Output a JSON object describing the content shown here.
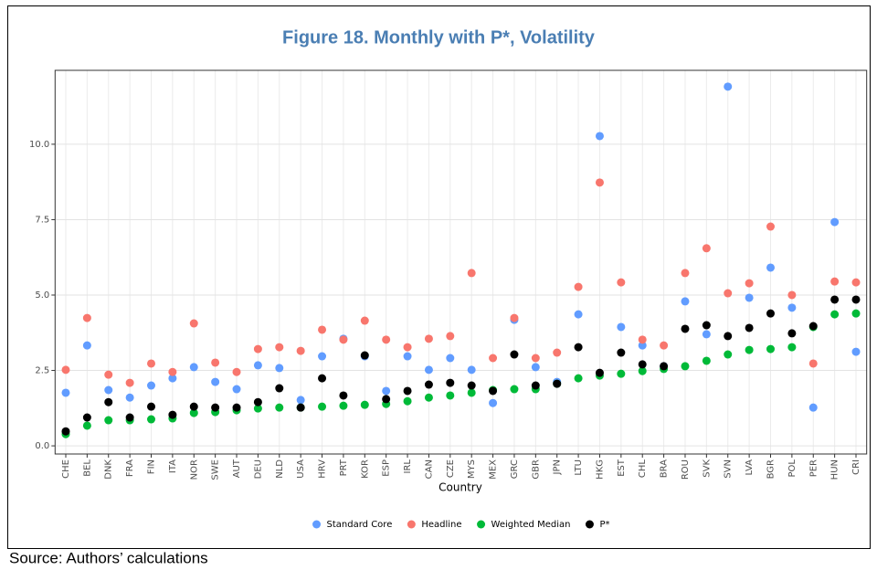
{
  "chart_data": {
    "type": "scatter",
    "title": "Figure 18. Monthly with P*, Volatility",
    "x_label": "Country",
    "categories": [
      "CHE",
      "BEL",
      "DNK",
      "FRA",
      "FIN",
      "ITA",
      "NOR",
      "SWE",
      "AUT",
      "DEU",
      "NLD",
      "USA",
      "HRV",
      "PRT",
      "KOR",
      "ESP",
      "IRL",
      "CAN",
      "CZE",
      "MYS",
      "MEX",
      "GRC",
      "GBR",
      "JPN",
      "LTU",
      "HKG",
      "EST",
      "CHL",
      "BRA",
      "ROU",
      "SVK",
      "SVN",
      "LVA",
      "BGR",
      "POL",
      "PER",
      "HUN",
      "CRI"
    ],
    "series": [
      {
        "name": "Standard Core",
        "color": "#619cff",
        "values": [
          1.76,
          3.33,
          1.85,
          1.6,
          2.0,
          2.24,
          2.61,
          2.12,
          1.88,
          2.67,
          2.58,
          1.52,
          2.97,
          3.55,
          2.97,
          1.82,
          2.97,
          2.52,
          2.91,
          2.52,
          1.42,
          4.18,
          2.61,
          2.12,
          4.36,
          10.27,
          3.94,
          3.33,
          2.64,
          4.79,
          3.7,
          11.91,
          4.91,
          5.91,
          4.58,
          1.27,
          7.42,
          3.12
        ]
      },
      {
        "name": "Headline",
        "color": "#f8766d",
        "values": [
          2.52,
          4.24,
          2.36,
          2.09,
          2.73,
          2.45,
          4.06,
          2.76,
          2.45,
          3.21,
          3.27,
          3.15,
          3.85,
          3.52,
          4.15,
          3.52,
          3.27,
          3.55,
          3.64,
          5.73,
          2.91,
          4.24,
          2.91,
          3.09,
          5.27,
          8.73,
          5.42,
          3.52,
          3.33,
          5.73,
          6.55,
          5.06,
          5.39,
          7.27,
          5.0,
          2.73,
          5.45,
          5.42
        ]
      },
      {
        "name": "Weighted Median",
        "color": "#00ba38",
        "values": [
          0.39,
          0.67,
          0.85,
          0.85,
          0.88,
          0.91,
          1.09,
          1.12,
          1.18,
          1.24,
          1.27,
          1.27,
          1.3,
          1.33,
          1.36,
          1.39,
          1.48,
          1.6,
          1.67,
          1.76,
          1.85,
          1.88,
          1.88,
          2.06,
          2.24,
          2.33,
          2.39,
          2.48,
          2.55,
          2.64,
          2.82,
          3.03,
          3.18,
          3.21,
          3.27,
          3.94,
          4.36,
          4.39
        ]
      },
      {
        "name": "P*",
        "color": "#000000",
        "values": [
          0.48,
          0.94,
          1.45,
          0.94,
          1.3,
          1.03,
          1.3,
          1.27,
          1.27,
          1.45,
          1.91,
          1.27,
          2.24,
          1.67,
          3.0,
          1.55,
          1.82,
          2.03,
          2.09,
          2.0,
          1.82,
          3.03,
          2.0,
          2.06,
          3.27,
          2.42,
          3.09,
          2.7,
          2.64,
          3.88,
          4.0,
          3.64,
          3.91,
          4.39,
          3.73,
          3.97,
          4.85,
          4.85
        ]
      }
    ],
    "ylim": [
      -0.27,
      12.45
    ],
    "yticks": [
      {
        "value": 0,
        "label": "0.0"
      },
      {
        "value": 2.5,
        "label": "2.5"
      },
      {
        "value": 5,
        "label": "5.0"
      },
      {
        "value": 7.5,
        "label": "7.5"
      },
      {
        "value": 10,
        "label": "10.0"
      }
    ],
    "grid": true,
    "legend": "bottom"
  },
  "source": "Source: Authors’ calculations"
}
